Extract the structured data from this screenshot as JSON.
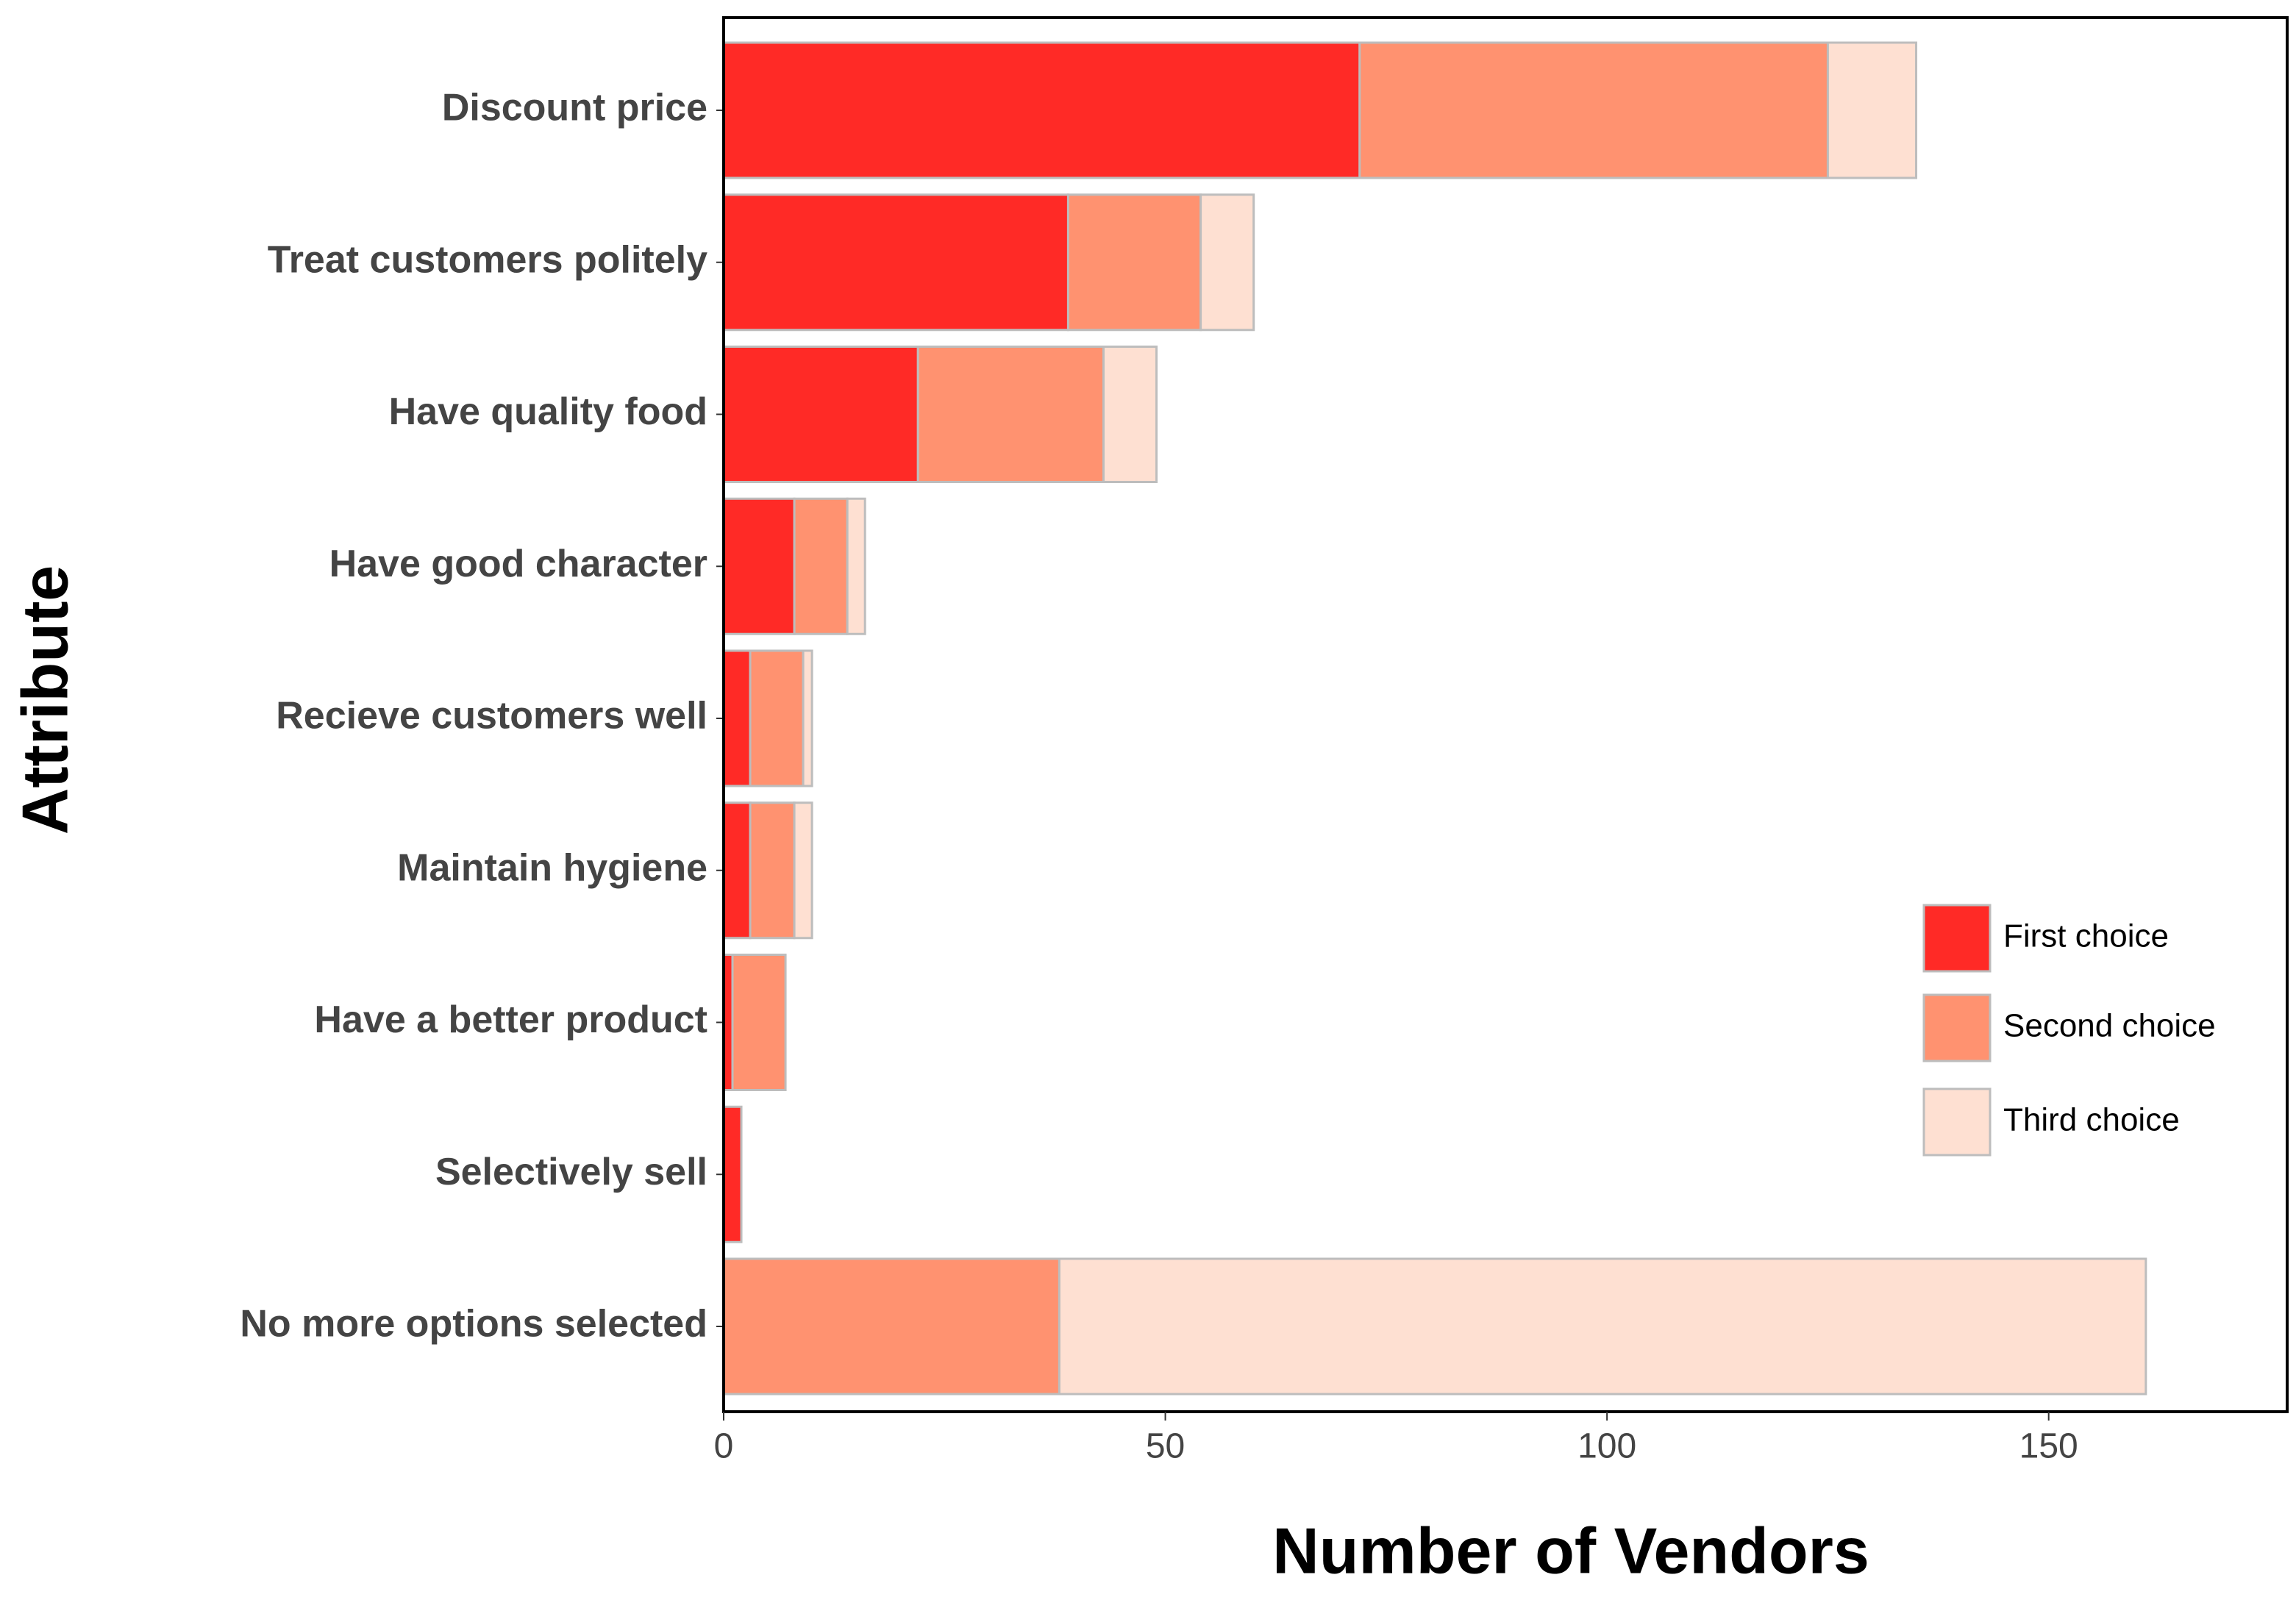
{
  "chart_data": {
    "type": "stacked-bar-horizontal",
    "x_label": "Number of Vendors",
    "y_label": "Attribute",
    "categories": [
      "Discount price",
      "Treat customers politely",
      "Have quality food",
      "Have good character",
      "Recieve customers well",
      "Maintain hygiene",
      "Have a better product",
      "Selectively sell",
      "No more options selected"
    ],
    "series": [
      {
        "name": "First choice",
        "color": "#ff2a26",
        "values": [
          72,
          39,
          22,
          8,
          3,
          3,
          1,
          2,
          0
        ]
      },
      {
        "name": "Second choice",
        "color": "#ff9270",
        "values": [
          53,
          15,
          21,
          6,
          6,
          5,
          6,
          0,
          38
        ]
      },
      {
        "name": "Third choice",
        "color": "#fee0d2",
        "values": [
          10,
          6,
          6,
          2,
          1,
          2,
          0,
          0,
          123
        ]
      }
    ],
    "xlim": [
      0,
      177
    ],
    "xticks": [
      0,
      50,
      100,
      150
    ],
    "legend": "right"
  }
}
